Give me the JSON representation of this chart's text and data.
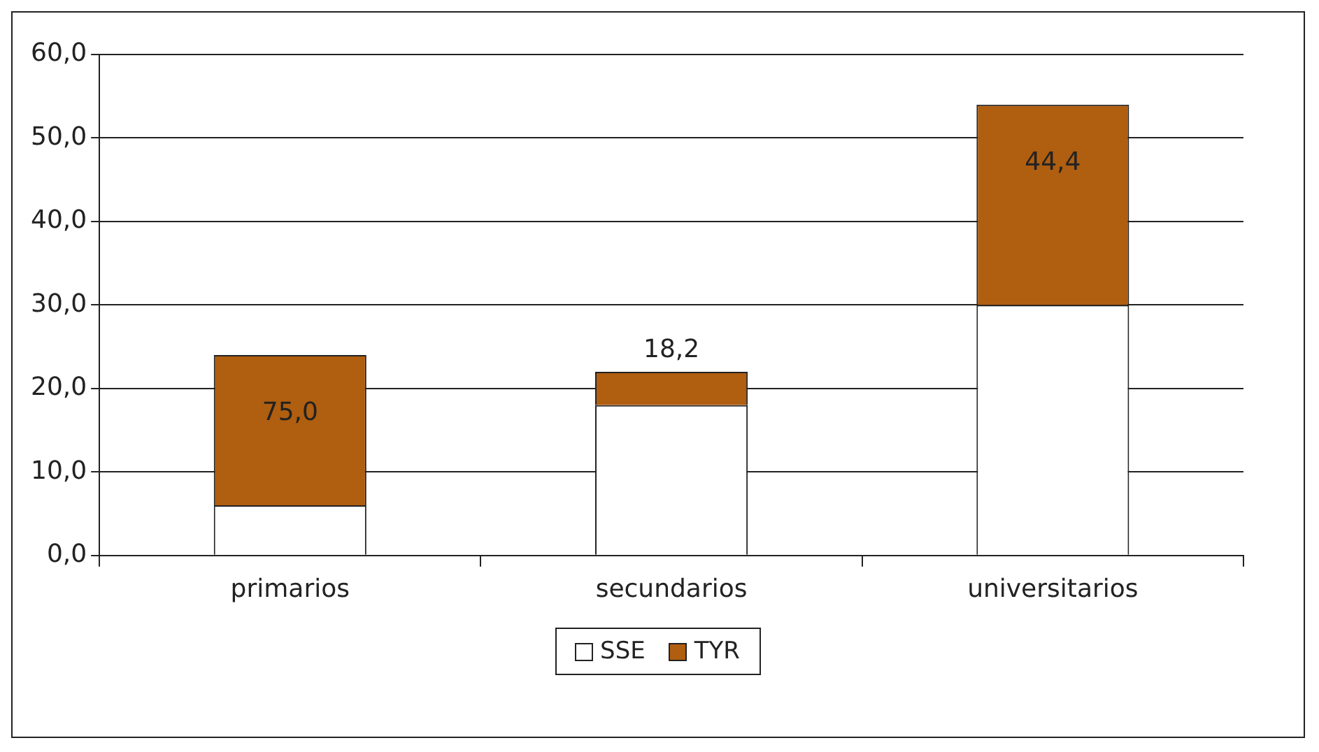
{
  "chart_data": {
    "type": "bar",
    "stacked": true,
    "categories": [
      "primarios",
      "secundarios",
      "universitarios"
    ],
    "series": [
      {
        "name": "SSE",
        "color": "#ffffff",
        "values": [
          6,
          18,
          30
        ]
      },
      {
        "name": "TYR",
        "color": "#b05e10",
        "values": [
          18,
          4,
          24
        ]
      }
    ],
    "annotations": [
      "75,0",
      "18,2",
      "44,4"
    ],
    "ylim": [
      0,
      60
    ],
    "yticks": [
      {
        "value": 0,
        "label": "0,0"
      },
      {
        "value": 10,
        "label": "10,0"
      },
      {
        "value": 20,
        "label": "20,0"
      },
      {
        "value": 30,
        "label": "30,0"
      },
      {
        "value": 40,
        "label": "40,0"
      },
      {
        "value": 50,
        "label": "50,0"
      },
      {
        "value": 60,
        "label": "60,0"
      }
    ],
    "grid": "y",
    "legend": "bottom"
  }
}
